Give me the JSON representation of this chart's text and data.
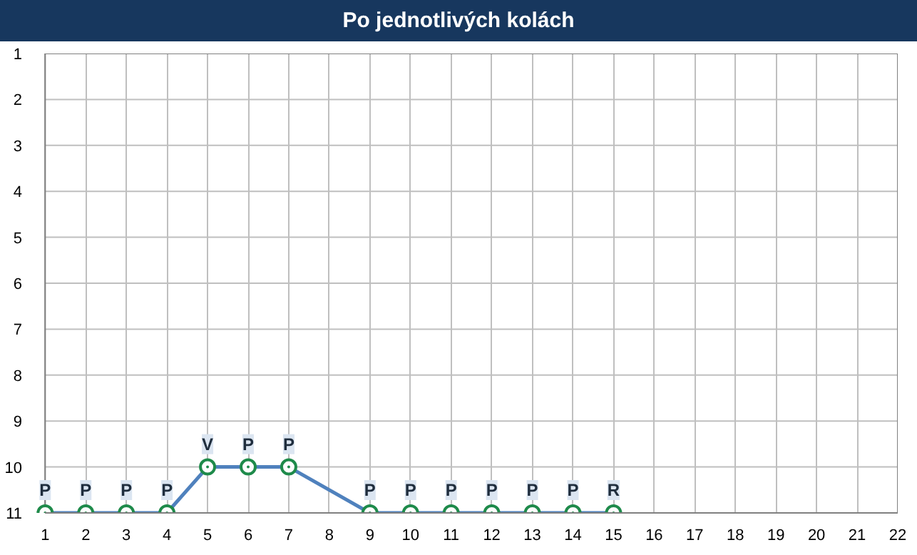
{
  "chart_data": {
    "type": "line",
    "title": "Po jednotlivých kolách",
    "xlim": [
      1,
      22
    ],
    "xticks": [
      1,
      2,
      3,
      4,
      5,
      6,
      7,
      8,
      9,
      10,
      11,
      12,
      13,
      14,
      15,
      16,
      17,
      18,
      19,
      20,
      21,
      22
    ],
    "ylim": [
      11,
      1
    ],
    "yticks": [
      1,
      2,
      3,
      4,
      5,
      6,
      7,
      8,
      9,
      10,
      11
    ],
    "grid": true,
    "marker": "circle",
    "line_style": "solid",
    "series": [
      {
        "color": "#4f81bd",
        "x": [
          1,
          2,
          3,
          4,
          5,
          6,
          7,
          9,
          10,
          11,
          12,
          13,
          14,
          15
        ],
        "values": [
          11,
          11,
          11,
          11,
          10,
          10,
          10,
          11,
          11,
          11,
          11,
          11,
          11,
          11
        ],
        "value_labels": [
          "P",
          "P",
          "P",
          "P",
          "V",
          "P",
          "P",
          "P",
          "P",
          "P",
          "P",
          "P",
          "P",
          "R"
        ]
      }
    ]
  }
}
